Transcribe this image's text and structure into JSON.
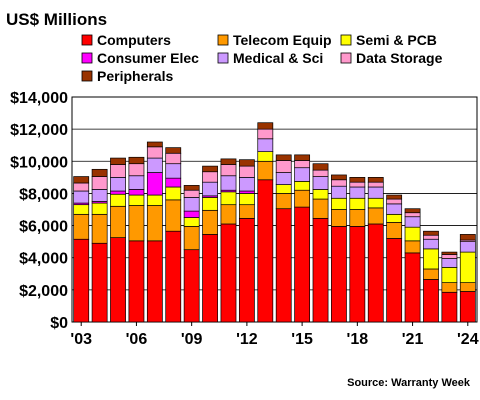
{
  "chart_data": {
    "type": "bar",
    "stacked": true,
    "title": "US$ Millions",
    "source": "Source: Warranty Week",
    "ylim": [
      0,
      14000
    ],
    "y_ticks": [
      "$0",
      "$2,000",
      "$4,000",
      "$6,000",
      "$8,000",
      "$10,000",
      "$12,000",
      "$14,000"
    ],
    "grid": true,
    "legend_position": "top",
    "x": [
      2003,
      2004,
      2005,
      2006,
      2007,
      2008,
      2009,
      2010,
      2011,
      2012,
      2013,
      2014,
      2015,
      2016,
      2017,
      2018,
      2019,
      2020,
      2021,
      2022,
      2023,
      2024
    ],
    "x_tick_labels": [
      "'03",
      "'06",
      "'09",
      "'12",
      "'15",
      "'18",
      "'21",
      "'24"
    ],
    "x_tick_years": [
      2003,
      2006,
      2009,
      2012,
      2015,
      2018,
      2021,
      2024
    ],
    "series": [
      {
        "name": "Computers",
        "color": "#ff0000",
        "values": [
          5150,
          4900,
          5250,
          5050,
          5050,
          5650,
          4500,
          5450,
          6100,
          6450,
          8850,
          7050,
          7150,
          6450,
          5950,
          5950,
          6100,
          5200,
          4300,
          2650,
          1850,
          1900
        ]
      },
      {
        "name": "Telecom Equip",
        "color": "#ff9900",
        "values": [
          1550,
          1800,
          1950,
          2200,
          2200,
          1950,
          1450,
          1500,
          1200,
          850,
          1150,
          950,
          1050,
          1200,
          1050,
          1050,
          1000,
          1000,
          750,
          650,
          600,
          550
        ]
      },
      {
        "name": "Semi & PCB",
        "color": "#ffff00",
        "values": [
          600,
          700,
          750,
          650,
          650,
          800,
          550,
          800,
          800,
          700,
          600,
          550,
          550,
          600,
          700,
          700,
          600,
          500,
          850,
          1250,
          950,
          1900
        ]
      },
      {
        "name": "Consumer Elec",
        "color": "#ff00ff",
        "values": [
          100,
          100,
          200,
          350,
          1400,
          550,
          400,
          100,
          100,
          150,
          0,
          0,
          0,
          0,
          0,
          0,
          0,
          0,
          0,
          0,
          0,
          0
        ]
      },
      {
        "name": "Medical & Sci",
        "color": "#cc99ff",
        "values": [
          750,
          750,
          850,
          850,
          900,
          900,
          850,
          850,
          900,
          850,
          800,
          750,
          850,
          800,
          750,
          700,
          700,
          650,
          650,
          600,
          550,
          650
        ]
      },
      {
        "name": "Data Storage",
        "color": "#ff99cc",
        "values": [
          500,
          800,
          800,
          750,
          700,
          650,
          450,
          650,
          700,
          700,
          600,
          750,
          450,
          400,
          400,
          300,
          300,
          300,
          250,
          250,
          250,
          100
        ]
      },
      {
        "name": "Peripherals",
        "color": "#993300",
        "values": [
          400,
          450,
          400,
          400,
          300,
          350,
          300,
          350,
          350,
          400,
          400,
          350,
          350,
          400,
          300,
          300,
          300,
          250,
          250,
          250,
          150,
          350
        ]
      }
    ]
  }
}
